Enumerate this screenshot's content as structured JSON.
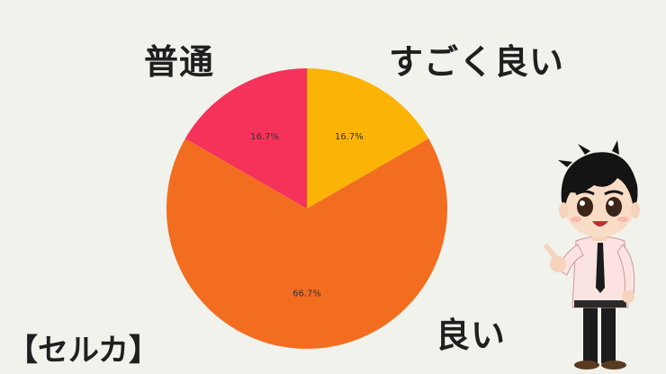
{
  "colors": {
    "background": "#f0f2eb",
    "very_good": "#fbb306",
    "good": "#f36d21",
    "normal": "#f5325a"
  },
  "labels": {
    "normal": "普通",
    "very_good": "すごく良い",
    "good": "良い"
  },
  "tag": "【セルカ】",
  "mascot": {
    "icon": "smiling-boy-pointing-icon"
  },
  "chart_data": {
    "type": "pie",
    "slices": [
      {
        "name": "すごく良い",
        "value": 16.7,
        "label": "16.7%",
        "color": "#fbb306"
      },
      {
        "name": "良い",
        "value": 66.7,
        "label": "66.7%",
        "color": "#f36d21"
      },
      {
        "name": "普通",
        "value": 16.7,
        "label": "16.7%",
        "color": "#f5325a"
      }
    ],
    "start_angle": "top (12 o'clock)",
    "direction": "clockwise"
  }
}
